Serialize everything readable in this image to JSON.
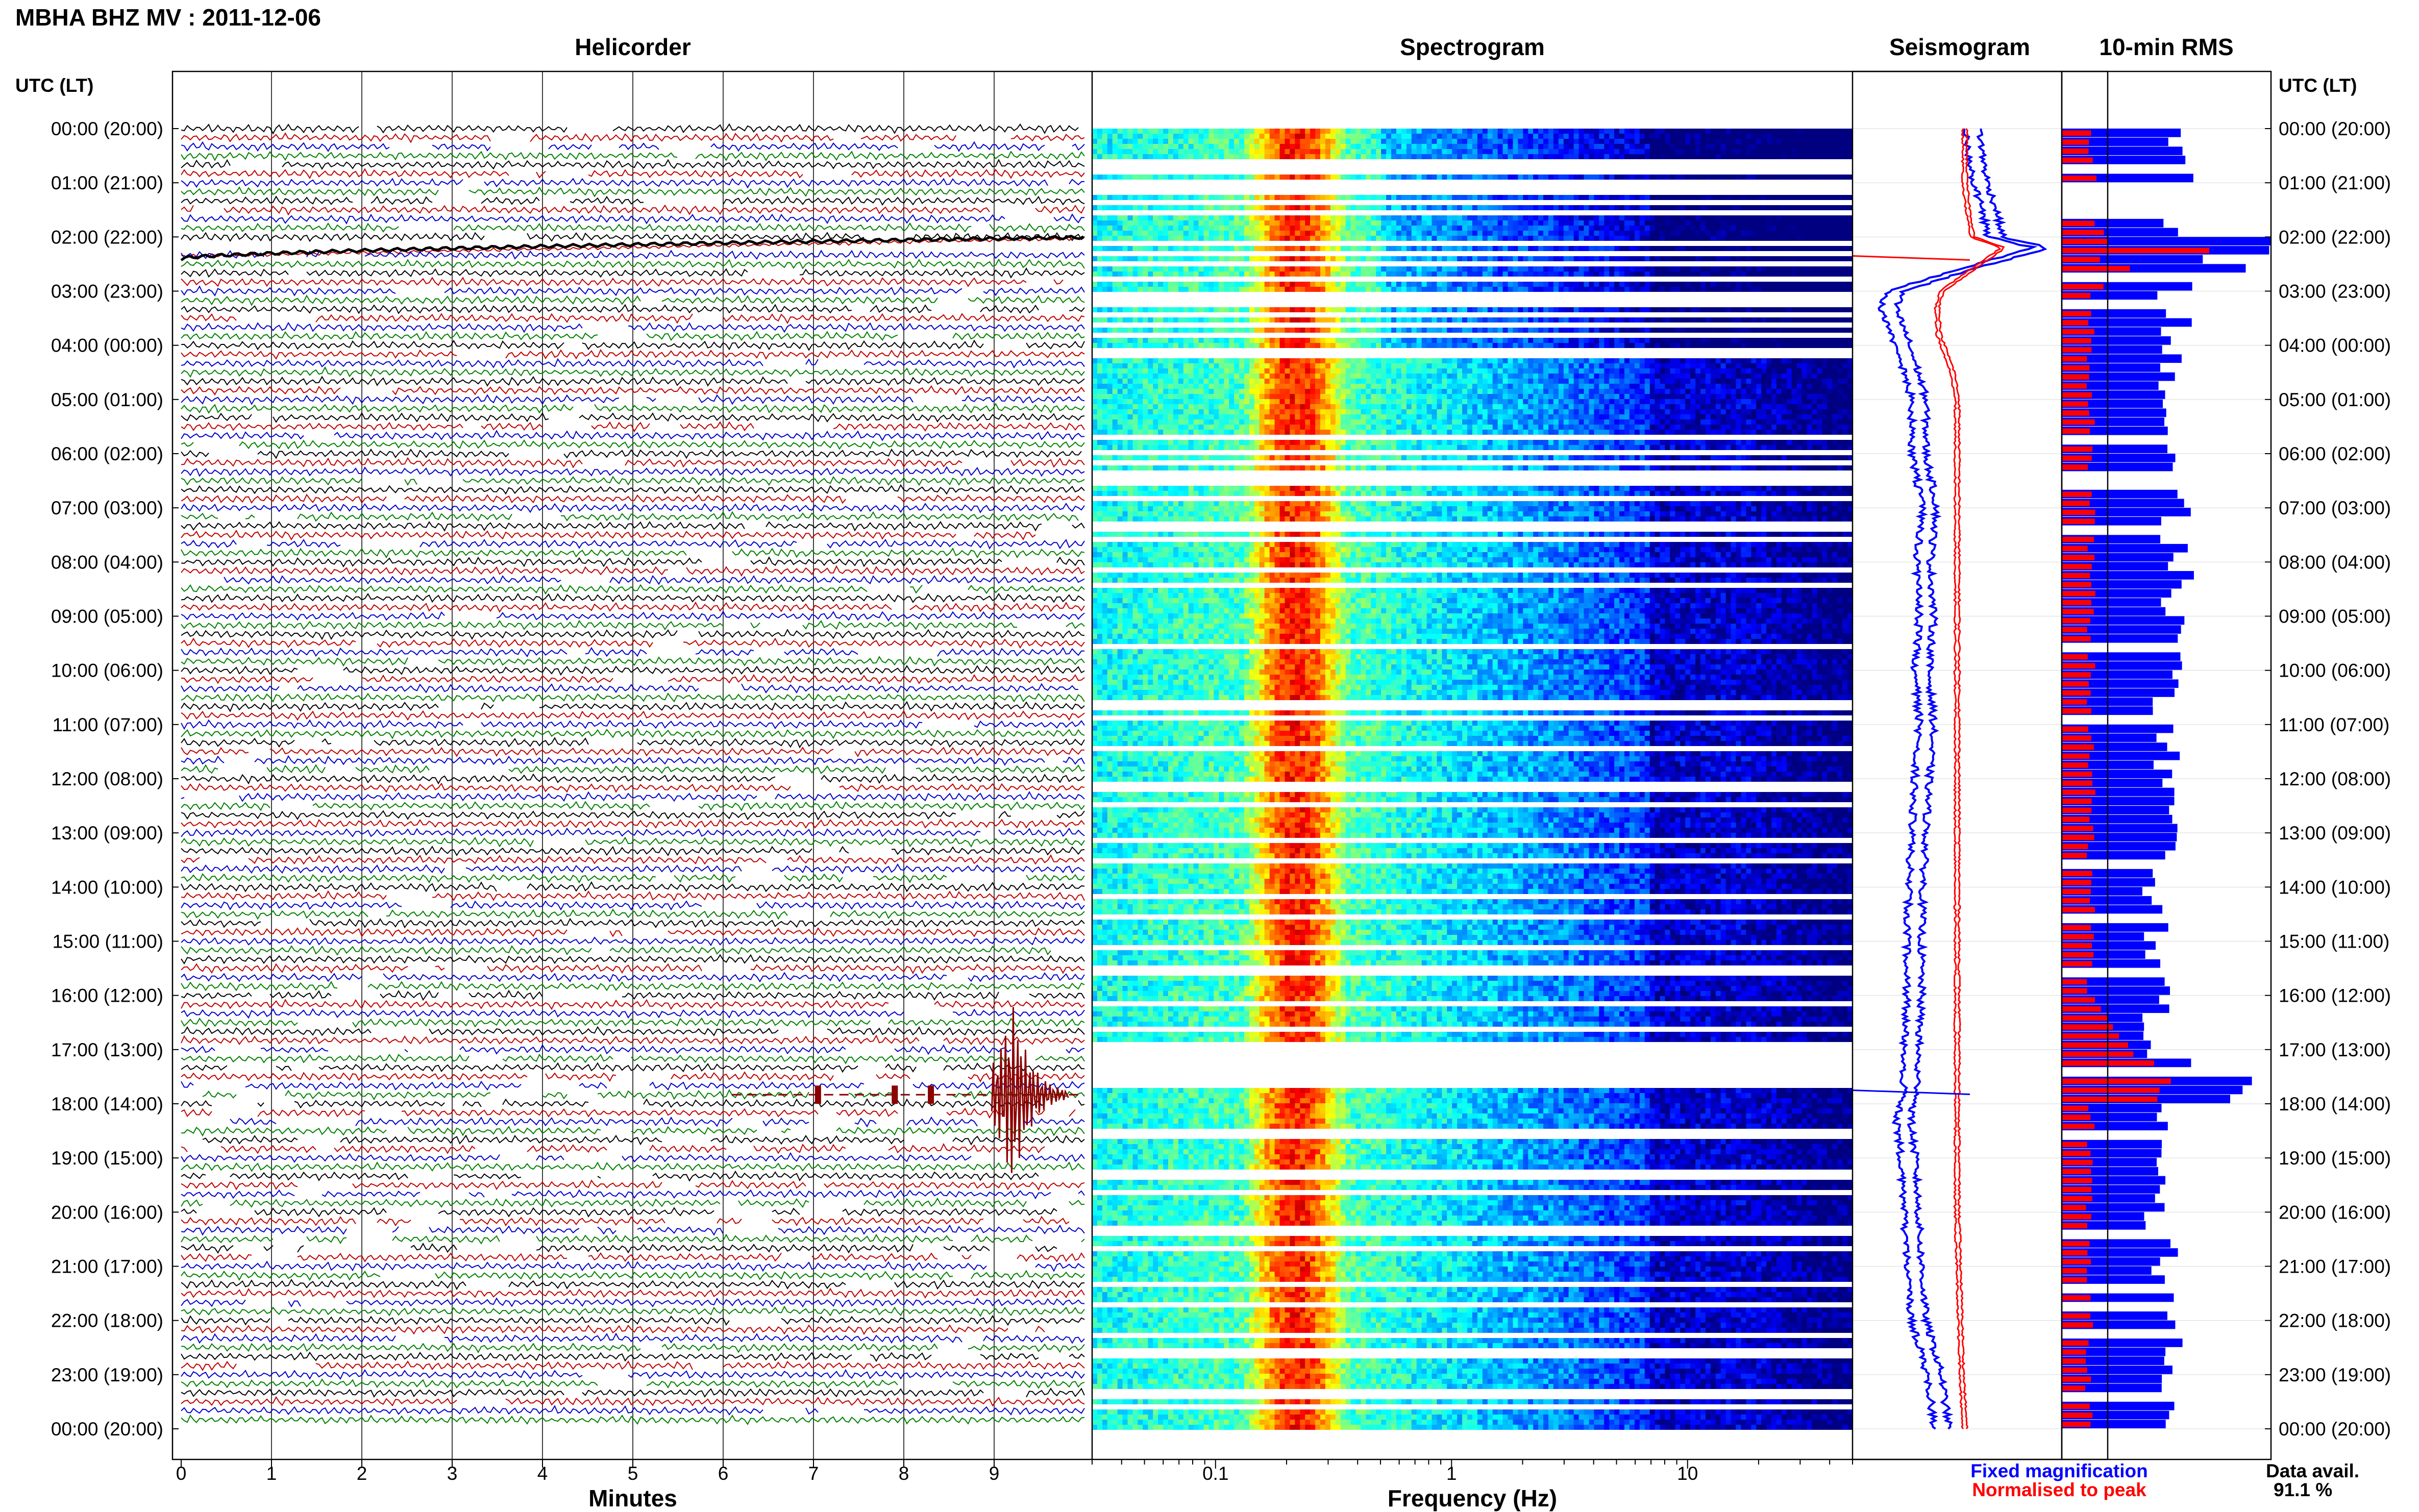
{
  "header": {
    "title": "MBHA BHZ MV : 2011-12-06"
  },
  "panels": {
    "helicorder": "Helicorder",
    "spectrogram": "Spectrogram",
    "seismogram": "Seismogram",
    "rms": "10-min RMS"
  },
  "time_axis_label": "UTC (LT)",
  "footer": {
    "minutes_label": "Minutes",
    "frequency_label": "Frequency (Hz)",
    "legend_fixed": "Fixed magnification",
    "legend_normalised": "Normalised to peak",
    "data_avail_label": "Data avail.",
    "data_avail_value": "91.1 %"
  },
  "colors": {
    "trace_cycle": [
      "#000000",
      "#c00000",
      "#0000cc",
      "#008000"
    ],
    "event": "#8b0000",
    "fixed": "#0000ff",
    "normalised": "#ff0000",
    "spectrogram_low": "#00008b",
    "spectrogram_high": "#ff8c00"
  },
  "chart_data": [
    {
      "type": "helicorder",
      "title": "Helicorder",
      "xlabel": "Minutes",
      "xlim": [
        0,
        10
      ],
      "x_ticks": [
        "0",
        "1",
        "2",
        "3",
        "4",
        "5",
        "6",
        "7",
        "8",
        "9"
      ],
      "rows_per_hour": 6,
      "y_ticks": [
        "00:00 (20:00)",
        "01:00 (21:00)",
        "02:00 (22:00)",
        "03:00 (23:00)",
        "04:00 (00:00)",
        "05:00 (01:00)",
        "06:00 (02:00)",
        "07:00 (03:00)",
        "08:00 (04:00)",
        "09:00 (05:00)",
        "10:00 (06:00)",
        "11:00 (07:00)",
        "12:00 (08:00)",
        "13:00 (09:00)",
        "14:00 (10:00)",
        "15:00 (11:00)",
        "16:00 (12:00)",
        "17:00 (13:00)",
        "18:00 (14:00)",
        "19:00 (15:00)",
        "20:00 (16:00)",
        "21:00 (17:00)",
        "22:00 (18:00)",
        "23:00 (19:00)",
        "00:00 (20:00)"
      ],
      "events": [
        {
          "time": "02:10",
          "minute_start": 0,
          "minute_end": 10,
          "description_shown": "drifting trace"
        },
        {
          "time": "17:50",
          "minute": 9.2,
          "peak_amplitude_rows": 7
        }
      ]
    },
    {
      "type": "heatmap",
      "title": "Spectrogram",
      "xlabel": "Frequency (Hz)",
      "xscale": "log",
      "xlim": [
        0.03,
        50
      ],
      "x_ticks": [
        "0.1",
        "1",
        "10"
      ],
      "peak_band_hz": [
        0.15,
        0.35
      ],
      "gap_hours": [
        0.55,
        0.7,
        1.0,
        1.15,
        1.35,
        1.5,
        2.05,
        2.25,
        2.45,
        2.7,
        3.05,
        3.2,
        3.4,
        3.55,
        3.75,
        4.1,
        5.65,
        5.9,
        6.1,
        6.35,
        6.5,
        6.75,
        7.3,
        7.55,
        8.1,
        8.4,
        9.5,
        10.6,
        10.85,
        11.4,
        12.1,
        12.4,
        13.1,
        13.5,
        14.1,
        14.5,
        15.1,
        15.5,
        16.1,
        16.55,
        16.9,
        17.1,
        17.35,
        17.55,
        18.5,
        19.25,
        19.6,
        20.3,
        20.6,
        21.3,
        21.65,
        22.2,
        22.55,
        23.3,
        23.55,
        24.0
      ]
    },
    {
      "type": "line",
      "title": "Seismogram",
      "legend": [
        "Fixed magnification",
        "Normalised to peak"
      ],
      "legend_placement": "bottom",
      "series": [
        {
          "name": "Fixed magnification",
          "hours": [
            0,
            0.5,
            1,
            1.5,
            2,
            2.2,
            2.6,
            3,
            3.3,
            3.8,
            4.5,
            5,
            6,
            7,
            8,
            9,
            10,
            11,
            12,
            13,
            14,
            15,
            16,
            17,
            17.5,
            17.8,
            18,
            18.3,
            19,
            20,
            21,
            22,
            23,
            24
          ],
          "values": [
            0.55,
            0.57,
            0.6,
            0.66,
            0.7,
            1.0,
            0.5,
            0.05,
            0.0,
            0.07,
            0.15,
            0.2,
            0.2,
            0.27,
            0.23,
            0.25,
            0.22,
            0.25,
            0.22,
            0.2,
            0.18,
            0.17,
            0.17,
            0.15,
            0.14,
            0.15,
            0.12,
            0.1,
            0.13,
            0.15,
            0.17,
            0.2,
            0.3,
            0.35
          ]
        },
        {
          "name": "Normalised to peak",
          "hours": [
            0,
            0.5,
            1,
            1.5,
            2,
            2.2,
            2.6,
            3,
            3.3,
            3.8,
            4.5,
            5,
            6,
            7,
            8,
            9,
            10,
            11,
            12,
            13,
            14,
            15,
            16,
            17,
            17.5,
            18,
            19,
            20,
            21,
            22,
            23,
            24
          ],
          "values": [
            0.5,
            0.5,
            0.5,
            0.52,
            0.55,
            0.75,
            0.55,
            0.35,
            0.32,
            0.33,
            0.42,
            0.45,
            0.45,
            0.45,
            0.45,
            0.45,
            0.45,
            0.45,
            0.45,
            0.45,
            0.45,
            0.45,
            0.45,
            0.45,
            0.45,
            0.45,
            0.45,
            0.45,
            0.46,
            0.47,
            0.48,
            0.5
          ]
        }
      ],
      "spikes": [
        {
          "hour": 2.35,
          "series": "Normalised to peak",
          "extends_left": true
        },
        {
          "hour": 17.75,
          "series": "Fixed magnification",
          "extends_left": true
        }
      ]
    },
    {
      "type": "bar",
      "title": "10-min RMS",
      "orientation": "horizontal",
      "series": [
        {
          "name": "Fixed magnification",
          "hours": [
            0,
            0.5,
            1,
            1.5,
            1.9,
            2.0,
            2.1,
            2.3,
            2.5,
            2.7,
            2.9,
            3.1,
            3.3,
            3.5,
            3.7,
            4,
            5,
            6,
            6.5,
            7,
            8,
            9,
            10,
            11,
            12,
            13,
            14,
            15,
            16,
            17,
            17.75,
            18,
            19,
            20,
            21,
            22,
            23,
            24
          ],
          "values": [
            0.5,
            0.55,
            0.6,
            0.45,
            0.55,
            0.95,
            1.0,
            0.6,
            0.95,
            1.0,
            0.45,
            0.6,
            0.5,
            0.55,
            0.45,
            0.5,
            0.55,
            0.55,
            0.6,
            0.55,
            0.55,
            0.55,
            0.5,
            0.5,
            0.5,
            0.5,
            0.45,
            0.45,
            0.45,
            0.45,
            1.0,
            0.45,
            0.45,
            0.45,
            0.5,
            0.55,
            0.5,
            0.45
          ]
        },
        {
          "name": "Normalised to peak",
          "hours": [
            0,
            1,
            2,
            2.1,
            2.3,
            2.5,
            2.7,
            2.9,
            3.1,
            4,
            6,
            8,
            10,
            12,
            14,
            16,
            17.75,
            18,
            20,
            22,
            24
          ],
          "values": [
            0.15,
            0.15,
            0.2,
            1.0,
            0.15,
            0.35,
            0.4,
            0.12,
            0.15,
            0.14,
            0.14,
            0.14,
            0.14,
            0.14,
            0.14,
            0.14,
            0.55,
            0.14,
            0.13,
            0.13,
            0.13
          ]
        }
      ]
    }
  ]
}
